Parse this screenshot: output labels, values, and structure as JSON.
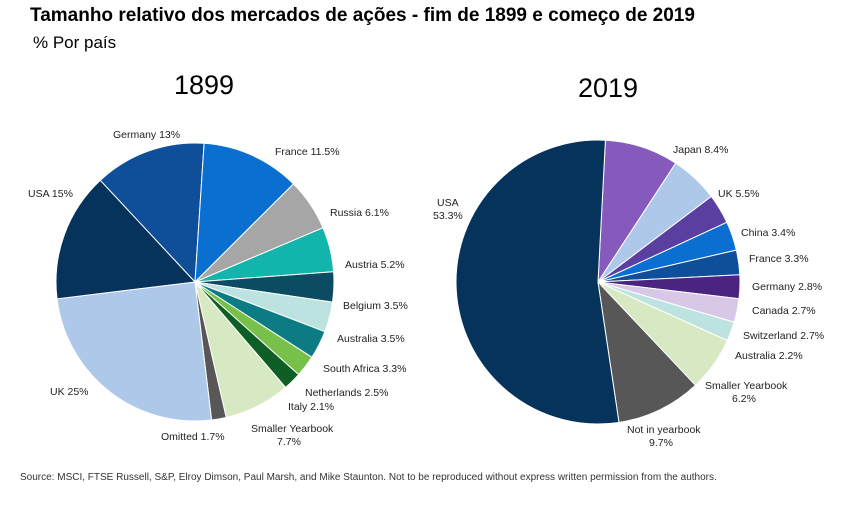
{
  "header": {
    "title": "Tamanho relativo dos mercados de ações - fim de 1899 e começo de 2019",
    "subtitle": "% Por país"
  },
  "footer": {
    "source": "Source: MSCI, FTSE Russell, S&P, Elroy Dimson, Paul Marsh, and Mike Staunton. Not to be reproduced without express written permission from the authors."
  },
  "chart_data": [
    {
      "type": "pie",
      "title": "1899",
      "slices": [
        {
          "label": "Germany",
          "value": 13,
          "display": "Germany 13%",
          "color": "#0f4f99"
        },
        {
          "label": "France",
          "value": 11.5,
          "display": "France 11.5%",
          "color": "#0a6fd0"
        },
        {
          "label": "Russia",
          "value": 6.1,
          "display": "Russia 6.1%",
          "color": "#a6a6a6"
        },
        {
          "label": "Austria",
          "value": 5.2,
          "display": "Austria 5.2%",
          "color": "#11b5ab"
        },
        {
          "label": "Belgium",
          "value": 3.5,
          "display": "Belgium 3.5%",
          "color": "#0c4c63"
        },
        {
          "label": "Australia",
          "value": 3.5,
          "display": "Australia 3.5%",
          "color": "#bce3e0"
        },
        {
          "label": "South Africa",
          "value": 3.3,
          "display": "South Africa 3.3%",
          "color": "#0b7c84"
        },
        {
          "label": "Netherlands",
          "value": 2.5,
          "display": "Netherlands 2.5%",
          "color": "#77c04a"
        },
        {
          "label": "Italy",
          "value": 2.1,
          "display": "Italy 2.1%",
          "color": "#0d5f25"
        },
        {
          "label": "Smaller Yearbook",
          "value": 7.7,
          "display": [
            "Smaller Yearbook",
            "7.7%"
          ],
          "color": "#d6e9c2"
        },
        {
          "label": "Omitted",
          "value": 1.7,
          "display": "Omitted 1.7%",
          "color": "#575757"
        },
        {
          "label": "UK",
          "value": 25,
          "display": "UK 25%",
          "color": "#aec8e9"
        },
        {
          "label": "USA",
          "value": 15,
          "display": "USA 15%",
          "color": "#06335c"
        }
      ]
    },
    {
      "type": "pie",
      "title": "2019",
      "slices": [
        {
          "label": "Japan",
          "value": 8.4,
          "display": "Japan 8.4%",
          "color": "#8659bd"
        },
        {
          "label": "UK",
          "value": 5.5,
          "display": "UK 5.5%",
          "color": "#aec8e9"
        },
        {
          "label": "China",
          "value": 3.4,
          "display": "China 3.4%",
          "color": "#5a3fa0"
        },
        {
          "label": "France",
          "value": 3.3,
          "display": "France 3.3%",
          "color": "#0a6fd0"
        },
        {
          "label": "Germany",
          "value": 2.8,
          "display": "Germany 2.8%",
          "color": "#0f4f99"
        },
        {
          "label": "Canada",
          "value": 2.7,
          "display": "Canada 2.7%",
          "color": "#4b2380"
        },
        {
          "label": "Switzerland",
          "value": 2.7,
          "display": "Switzerland 2.7%",
          "color": "#d8c8e8"
        },
        {
          "label": "Australia",
          "value": 2.2,
          "display": "Australia 2.2%",
          "color": "#bce3e0"
        },
        {
          "label": "Smaller Yearbook",
          "value": 6.2,
          "display": [
            "Smaller Yearbook",
            "6.2%"
          ],
          "color": "#d6e9c2"
        },
        {
          "label": "Not in yearbook",
          "value": 9.7,
          "display": [
            "Not in yearbook",
            "9.7%"
          ],
          "color": "#575757"
        },
        {
          "label": "USA",
          "value": 53.3,
          "display": [
            "USA",
            "53.3%"
          ],
          "color": "#06335c"
        }
      ]
    }
  ]
}
